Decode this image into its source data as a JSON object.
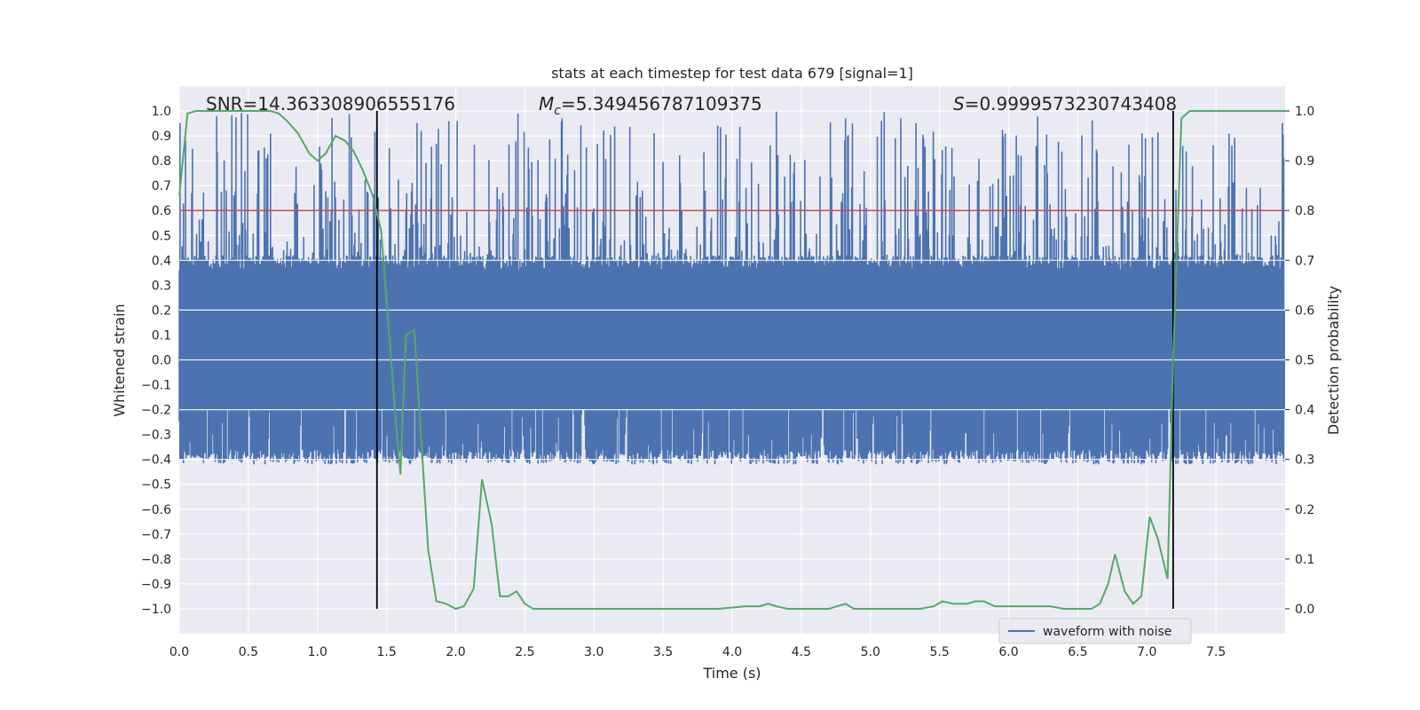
{
  "chart_data": {
    "type": "line",
    "title": "stats at each timestep for test data 679 [signal=1]",
    "xlabel": "Time (s)",
    "ylabel": "Whitened strain",
    "ylabel_right": "Detection probability",
    "xlim": [
      0.0,
      8.0
    ],
    "ylim": [
      -1.1,
      1.1
    ],
    "ylim_right": [
      -0.05,
      1.05
    ],
    "x_ticks": [
      0.0,
      0.5,
      1.0,
      1.5,
      2.0,
      2.5,
      3.0,
      3.5,
      4.0,
      4.5,
      5.0,
      5.5,
      6.0,
      6.5,
      7.0,
      7.5
    ],
    "x_tick_labels": [
      "0.0",
      "0.5",
      "1.0",
      "1.5",
      "2.0",
      "2.5",
      "3.0",
      "3.5",
      "4.0",
      "4.5",
      "5.0",
      "5.5",
      "6.0",
      "6.5",
      "7.0",
      "7.5"
    ],
    "y_ticks": [
      1.0,
      0.9,
      0.8,
      0.7,
      0.6,
      0.5,
      0.4,
      0.3,
      0.2,
      0.1,
      0.0,
      -0.1,
      -0.2,
      -0.3,
      -0.4,
      -0.5,
      -0.6,
      -0.7,
      -0.8,
      -0.9,
      -1.0
    ],
    "y_tick_labels": [
      "1.0",
      "0.9",
      "0.8",
      "0.7",
      "0.6",
      "0.5",
      "0.4",
      "0.3",
      "0.2",
      "0.1",
      "0.0",
      "−0.1",
      "−0.2",
      "−0.3",
      "−0.4",
      "−0.5",
      "−0.6",
      "−0.7",
      "−0.8",
      "−0.9",
      "−1.0"
    ],
    "y_right_ticks": [
      1.0,
      0.9,
      0.8,
      0.7,
      0.6,
      0.5,
      0.4,
      0.3,
      0.2,
      0.1,
      0.0
    ],
    "y_right_tick_labels": [
      "1.0",
      "0.9",
      "0.8",
      "0.7",
      "0.6",
      "0.5",
      "0.4",
      "0.3",
      "0.2",
      "0.1",
      "0.0"
    ],
    "annotations": {
      "snr": "SNR=14.363308906555176",
      "mc_symbol": "M",
      "mc_sub": "c",
      "mc_value": "=5.349456787109375",
      "s_symbol": "S",
      "s_value": "=0.9999573230743408"
    },
    "threshold": {
      "value": 0.6,
      "color": "#c44e52"
    },
    "vertical_lines": [
      1.43,
      7.19
    ],
    "vline_color": "#000000",
    "legend": {
      "label": "waveform with noise",
      "location": "lower-right"
    },
    "waveform": {
      "name": "waveform with noise",
      "color": "#4c72b0",
      "sample_step": 0.005,
      "band": 0.4,
      "envelope_max_approx": 1.0,
      "envelope_min_approx": -1.0
    },
    "series": [
      {
        "name": "detection probability",
        "color": "#55a868",
        "axis": "right",
        "x": [
          0.0,
          0.06,
          0.12,
          0.2,
          0.3,
          0.4,
          0.5,
          0.6,
          0.66,
          0.72,
          0.78,
          0.86,
          0.94,
          1.0,
          1.06,
          1.13,
          1.2,
          1.26,
          1.33,
          1.4,
          1.46,
          1.5,
          1.56,
          1.6,
          1.64,
          1.7,
          1.76,
          1.8,
          1.86,
          1.93,
          2.0,
          2.06,
          2.13,
          2.19,
          2.26,
          2.32,
          2.38,
          2.44,
          2.5,
          2.56,
          2.63,
          2.7,
          2.8,
          2.9,
          3.0,
          3.1,
          3.2,
          3.3,
          3.5,
          3.7,
          3.9,
          4.1,
          4.2,
          4.26,
          4.32,
          4.4,
          4.5,
          4.6,
          4.7,
          4.76,
          4.82,
          4.88,
          4.96,
          5.06,
          5.16,
          5.26,
          5.36,
          5.46,
          5.52,
          5.6,
          5.7,
          5.76,
          5.82,
          5.9,
          6.0,
          6.1,
          6.2,
          6.3,
          6.4,
          6.5,
          6.6,
          6.66,
          6.72,
          6.77,
          6.84,
          6.9,
          6.96,
          7.02,
          7.08,
          7.15,
          7.19,
          7.25,
          7.31,
          7.4,
          7.6,
          7.8,
          8.0
        ],
        "y": [
          0.83,
          0.995,
          1.0,
          1.0,
          1.0,
          1.0,
          1.0,
          1.0,
          1.0,
          0.995,
          0.98,
          0.955,
          0.915,
          0.9,
          0.915,
          0.95,
          0.94,
          0.92,
          0.88,
          0.83,
          0.76,
          0.62,
          0.4,
          0.27,
          0.55,
          0.56,
          0.3,
          0.12,
          0.015,
          0.01,
          0.0,
          0.005,
          0.04,
          0.26,
          0.17,
          0.025,
          0.025,
          0.035,
          0.01,
          0.0,
          0.0,
          0.0,
          0.0,
          0.0,
          0.0,
          0.0,
          0.0,
          0.0,
          0.0,
          0.0,
          0.0,
          0.005,
          0.005,
          0.01,
          0.005,
          0.0,
          0.0,
          0.0,
          0.0,
          0.005,
          0.01,
          0.0,
          0.0,
          0.0,
          0.0,
          0.0,
          0.0,
          0.005,
          0.015,
          0.01,
          0.01,
          0.015,
          0.015,
          0.005,
          0.005,
          0.005,
          0.005,
          0.005,
          0.0,
          0.0,
          0.0,
          0.01,
          0.05,
          0.11,
          0.035,
          0.01,
          0.025,
          0.185,
          0.14,
          0.06,
          0.5,
          0.985,
          1.0,
          1.0,
          1.0,
          1.0,
          1.0
        ]
      }
    ]
  }
}
